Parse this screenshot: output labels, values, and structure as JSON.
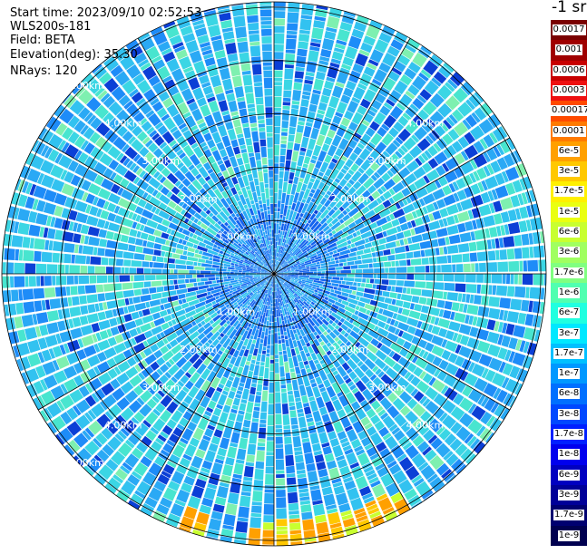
{
  "header": {
    "start_time": "Start time: 2023/09/10 02:52:53",
    "instrument": "WLS200s-181",
    "field": "Field: BETA",
    "elevation": "Elevation(deg): 35.30",
    "nrays": "NRays: 120"
  },
  "colorbar": {
    "units": "-1 sr",
    "levels": [
      "0.0017",
      "0.001",
      "0.0006",
      "0.0003",
      "0.00017",
      "0.0001",
      "6e-5",
      "3e-5",
      "1.7e-5",
      "1e-5",
      "6e-6",
      "3e-6",
      "1.7e-6",
      "1e-6",
      "6e-7",
      "3e-7",
      "1.7e-7",
      "1e-7",
      "6e-8",
      "3e-8",
      "1.7e-8",
      "1e-8",
      "6e-9",
      "3e-9",
      "1.7e-9",
      "1e-9"
    ],
    "colors": [
      "#7a0000",
      "#a00000",
      "#c80000",
      "#ee1010",
      "#ff4a00",
      "#ff7a00",
      "#ffa000",
      "#ffc800",
      "#fff000",
      "#eaff10",
      "#c8ff30",
      "#a0ff60",
      "#80ff80",
      "#50ffb0",
      "#20ffe0",
      "#00e8ff",
      "#00c0ff",
      "#0098ff",
      "#0070ff",
      "#0048ff",
      "#0020ff",
      "#0000ee",
      "#0000c0",
      "#000098",
      "#000070",
      "#000050"
    ]
  },
  "chart_data": {
    "type": "heatmap",
    "projection": "polar PPI",
    "field": "BETA",
    "n_rays": 120,
    "elevation_deg": 35.3,
    "range_rings_km": [
      "1.00km",
      "2.00km",
      "3.00km",
      "4.00km",
      "5.00km"
    ],
    "max_range_km": 5.1,
    "azimuth_spokes_deg": [
      0,
      30,
      60,
      90,
      120,
      150,
      180,
      210,
      240,
      270,
      300,
      330
    ],
    "typical_value": "3e-7 to 3e-8",
    "far_range_south_value": "1e-5 to 6e-5"
  }
}
